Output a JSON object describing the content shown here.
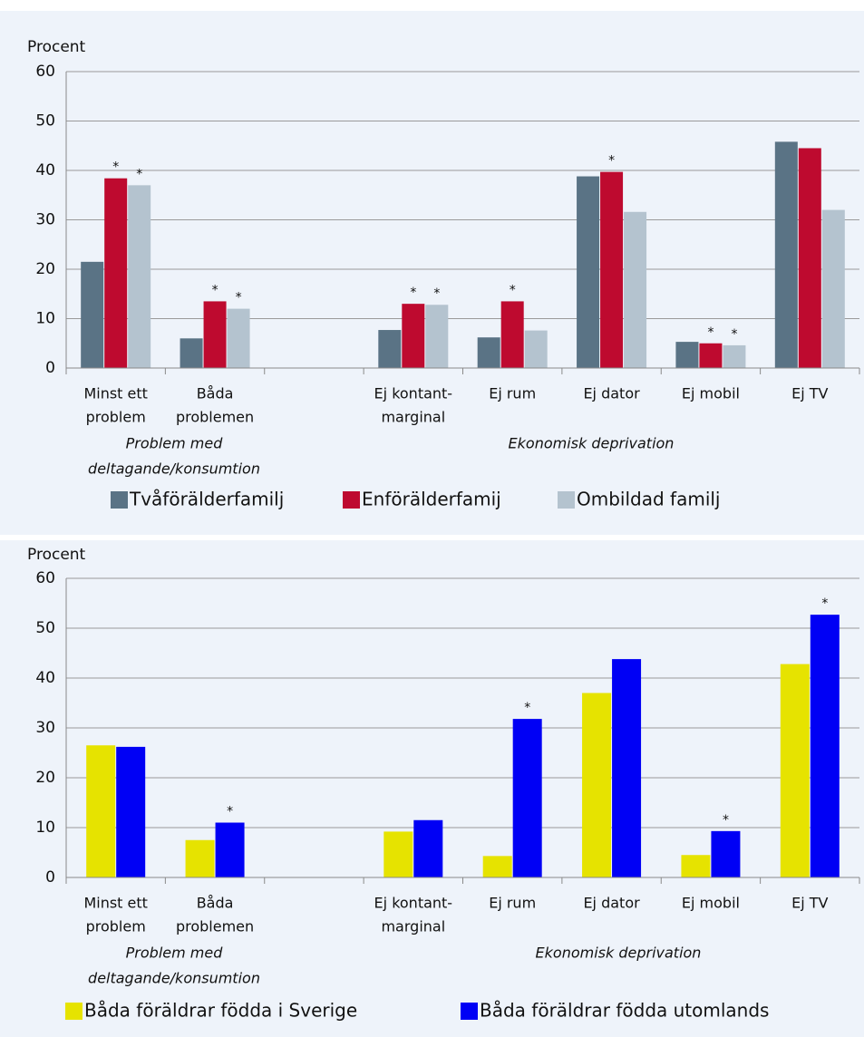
{
  "chart_data": [
    {
      "type": "bar",
      "ylabel": "Procent",
      "categories": [
        [
          "Minst ett",
          "problem"
        ],
        [
          "Båda",
          "problemen"
        ],
        null,
        [
          "Ej kontant-",
          "marginal"
        ],
        [
          "Ej rum"
        ],
        [
          "Ej dator"
        ],
        [
          "Ej mobil"
        ],
        [
          "Ej TV"
        ]
      ],
      "groups": [
        {
          "label": [
            "Problem med",
            "deltagande/konsumtion"
          ]
        },
        {
          "label": [
            "Ekonomisk deprivation"
          ]
        }
      ],
      "series": [
        {
          "name": "Tvåförälderfamilj",
          "color": "#5a7385",
          "values": [
            21.5,
            6,
            null,
            7.7,
            6.2,
            38.8,
            5.3,
            45.8
          ]
        },
        {
          "name": "Enförälderfamij",
          "color": "#be0a2f",
          "values": [
            38.4,
            13.5,
            null,
            13,
            13.5,
            39.7,
            5,
            44.5
          ],
          "stars": [
            "*",
            "*",
            null,
            "*",
            "*",
            "*",
            "*",
            null
          ]
        },
        {
          "name": "Ombildad familj",
          "color": "#b4c3cf",
          "values": [
            37,
            12,
            null,
            12.8,
            7.6,
            31.6,
            4.6,
            32
          ],
          "stars": [
            "*",
            "*",
            null,
            "*",
            null,
            null,
            "*",
            null
          ]
        }
      ],
      "ylim": [
        0,
        60
      ],
      "yticks": [
        0,
        10,
        20,
        30,
        40,
        50,
        60
      ],
      "grid": true,
      "legend": "bottom"
    },
    {
      "type": "bar",
      "ylabel": "Procent",
      "categories": [
        [
          "Minst ett",
          "problem"
        ],
        [
          "Båda",
          "problemen"
        ],
        null,
        [
          "Ej kontant-",
          "marginal"
        ],
        [
          "Ej rum"
        ],
        [
          "Ej dator"
        ],
        [
          "Ej mobil"
        ],
        [
          "Ej TV"
        ]
      ],
      "groups": [
        {
          "label": [
            "Problem med",
            "deltagande/konsumtion"
          ]
        },
        {
          "label": [
            "Ekonomisk deprivation"
          ]
        }
      ],
      "series": [
        {
          "name": "Båda föräldrar födda i Sverige",
          "color": "#e6e300",
          "values": [
            26.5,
            7.5,
            null,
            9.2,
            4.3,
            37,
            4.5,
            42.8
          ]
        },
        {
          "name": "Båda föräldrar födda utomlands",
          "color": "#0000f5",
          "values": [
            26.2,
            11,
            null,
            11.5,
            31.8,
            43.8,
            9.3,
            52.7
          ],
          "stars": [
            null,
            "*",
            null,
            null,
            "*",
            null,
            "*",
            "*"
          ]
        }
      ],
      "ylim": [
        0,
        60
      ],
      "yticks": [
        0,
        10,
        20,
        30,
        40,
        50,
        60
      ],
      "grid": true,
      "legend": "bottom"
    }
  ]
}
